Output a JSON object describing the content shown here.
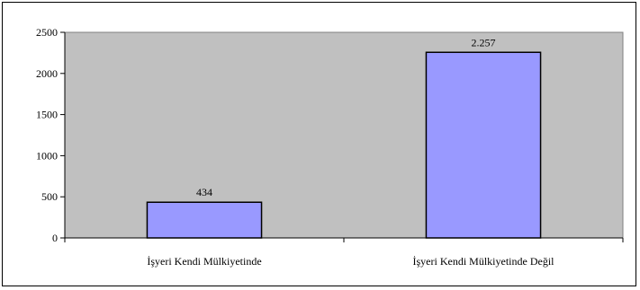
{
  "chart_data": {
    "type": "bar",
    "categories": [
      "İşyeri Kendi Mülkiyetinde",
      "İşyeri Kendi Mülkiyetinde Değil"
    ],
    "values": [
      434,
      2257
    ],
    "data_labels": [
      "434",
      "2.257"
    ],
    "ylim": [
      0,
      2500
    ],
    "yticks": [
      0,
      500,
      1000,
      1500,
      2000,
      2500
    ],
    "title": "",
    "xlabel": "",
    "ylabel": "",
    "grid": false,
    "legend": "none",
    "colors": {
      "plot_background": "#c0c0c0",
      "bar_fill": "#9999ff",
      "bar_stroke": "#000000"
    }
  }
}
